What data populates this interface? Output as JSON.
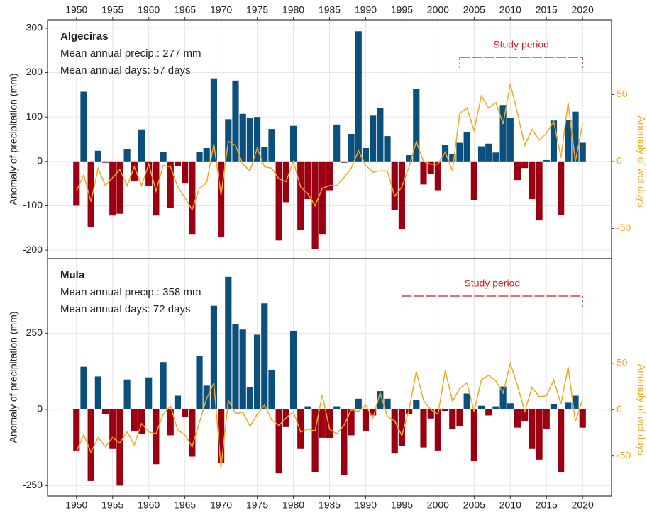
{
  "chart_data": [
    {
      "type": "bar_line",
      "title": "Algeciras",
      "subtitle": [
        "Mean annual precip.: 277 mm",
        "Mean annual days: 57 days"
      ],
      "ylabel": "Anomaly of precipitation (mm)",
      "y2label": "Anomaly of wet days",
      "annotation": {
        "text": "Study period",
        "x": [
          2003,
          2020
        ],
        "color": "#d7191c"
      },
      "x": [
        1950,
        1951,
        1952,
        1953,
        1954,
        1955,
        1956,
        1957,
        1958,
        1959,
        1960,
        1961,
        1962,
        1963,
        1964,
        1965,
        1966,
        1967,
        1968,
        1969,
        1970,
        1971,
        1972,
        1973,
        1974,
        1975,
        1976,
        1977,
        1978,
        1979,
        1980,
        1981,
        1982,
        1983,
        1984,
        1985,
        1986,
        1987,
        1988,
        1989,
        1990,
        1991,
        1992,
        1993,
        1994,
        1995,
        1996,
        1997,
        1998,
        1999,
        2000,
        2001,
        2002,
        2003,
        2004,
        2005,
        2006,
        2007,
        2008,
        2009,
        2010,
        2011,
        2012,
        2013,
        2014,
        2015,
        2016,
        2017,
        2018,
        2019,
        2020
      ],
      "series": [
        {
          "type": "bar",
          "color": "#0b4f7c",
          "negative_color": "#9b0012",
          "values": [
            -100,
            157,
            -148,
            24,
            -3,
            -122,
            -118,
            28,
            -45,
            72,
            -55,
            -122,
            22,
            -105,
            -10,
            -50,
            -165,
            22,
            30,
            187,
            -170,
            95,
            182,
            107,
            97,
            100,
            33,
            73,
            -178,
            -92,
            80,
            -155,
            -85,
            -197,
            -165,
            -65,
            83,
            -3,
            62,
            293,
            30,
            103,
            120,
            57,
            -110,
            -152,
            14,
            163,
            -52,
            -28,
            -65,
            37,
            17,
            42,
            66,
            -88,
            34,
            40,
            20,
            127,
            98,
            -42,
            -15,
            -85,
            -133,
            3,
            92,
            -120,
            93,
            112,
            42
          ]
        },
        {
          "type": "line",
          "axis": "y2",
          "color": "#f5a623",
          "values": [
            -22,
            -10,
            -30,
            -5,
            -18,
            -12,
            -6,
            -18,
            -4,
            -18,
            -2,
            -22,
            -3,
            -4,
            -19,
            -27,
            -36,
            -20,
            -16,
            13,
            -25,
            15,
            12,
            -2,
            -7,
            10,
            -4,
            -5,
            -13,
            -15,
            0,
            -19,
            -24,
            -33,
            -20,
            -18,
            -18,
            -12,
            -5,
            8,
            -3,
            -8,
            -7,
            -7,
            -26,
            -19,
            -4,
            15,
            0,
            -2,
            -2,
            7,
            -7,
            36,
            40,
            23,
            49,
            40,
            44,
            28,
            58,
            36,
            12,
            24,
            16,
            21,
            30,
            3,
            44,
            0,
            28
          ]
        }
      ],
      "xlim": [
        1946,
        2024
      ],
      "xticks": [
        1950,
        1955,
        1960,
        1965,
        1970,
        1975,
        1980,
        1985,
        1990,
        1995,
        2000,
        2005,
        2010,
        2015,
        2020
      ],
      "xaxis": "top",
      "ylim": [
        -219,
        319
      ],
      "yticks": [
        -200,
        -100,
        0,
        100,
        200,
        300
      ],
      "y2lim": [
        -72.5,
        105.8
      ],
      "y2ticks": [
        -50,
        0,
        50
      ],
      "grid": true
    },
    {
      "type": "bar_line",
      "title": "Mula",
      "subtitle": [
        "Mean annual precip.: 358 mm",
        "Mean annual days: 72 days"
      ],
      "ylabel": "Anomaly of precipitation (mm)",
      "y2label": "Anomaly of wet days",
      "annotation": {
        "text": "Study period",
        "x": [
          1995,
          2020
        ],
        "color": "#d7191c"
      },
      "x": [
        1950,
        1951,
        1952,
        1953,
        1954,
        1955,
        1956,
        1957,
        1958,
        1959,
        1960,
        1961,
        1962,
        1963,
        1964,
        1965,
        1966,
        1967,
        1968,
        1969,
        1970,
        1971,
        1972,
        1973,
        1974,
        1975,
        1976,
        1977,
        1978,
        1979,
        1980,
        1981,
        1982,
        1983,
        1984,
        1985,
        1986,
        1987,
        1988,
        1989,
        1990,
        1991,
        1992,
        1993,
        1994,
        1995,
        1996,
        1997,
        1998,
        1999,
        2000,
        2001,
        2002,
        2003,
        2004,
        2005,
        2006,
        2007,
        2008,
        2009,
        2010,
        2011,
        2012,
        2013,
        2014,
        2015,
        2016,
        2017,
        2018,
        2019,
        2020
      ],
      "series": [
        {
          "type": "bar",
          "color": "#0b4f7c",
          "negative_color": "#9b0012",
          "values": [
            -135,
            140,
            -235,
            108,
            -15,
            -130,
            -250,
            98,
            -70,
            -80,
            105,
            -180,
            155,
            -85,
            45,
            -25,
            -155,
            175,
            78,
            340,
            -175,
            435,
            280,
            262,
            72,
            245,
            348,
            130,
            -210,
            -58,
            258,
            -130,
            10,
            -205,
            -93,
            -95,
            10,
            -215,
            -85,
            35,
            -70,
            -20,
            60,
            35,
            -145,
            -120,
            -15,
            30,
            -125,
            -30,
            -135,
            -5,
            -65,
            -55,
            52,
            -170,
            12,
            -20,
            10,
            75,
            20,
            -60,
            -40,
            -130,
            -165,
            -65,
            18,
            -205,
            22,
            45,
            -60
          ]
        },
        {
          "type": "line",
          "axis": "y2",
          "color": "#f5a623",
          "values": [
            -45,
            -27,
            -46,
            -30,
            -40,
            -30,
            -36,
            -24,
            -38,
            -15,
            -24,
            -26,
            -5,
            4,
            -22,
            -27,
            -40,
            -14,
            12,
            29,
            -63,
            10,
            -4,
            -3,
            -18,
            -5,
            5,
            -11,
            -17,
            -9,
            -2,
            -24,
            -21,
            -23,
            16,
            -21,
            -26,
            -17,
            0,
            -2,
            5,
            -9,
            18,
            -7,
            -12,
            -28,
            0,
            41,
            10,
            0,
            -5,
            42,
            9,
            23,
            29,
            -2,
            32,
            37,
            31,
            18,
            50,
            26,
            -2,
            24,
            14,
            15,
            32,
            6,
            46,
            -13,
            11
          ]
        }
      ],
      "xlim": [
        1946,
        2024
      ],
      "xticks": [
        1950,
        1955,
        1960,
        1965,
        1970,
        1975,
        1980,
        1985,
        1990,
        1995,
        2000,
        2005,
        2010,
        2015,
        2020
      ],
      "xaxis": "bottom",
      "ylim": [
        -284,
        495
      ],
      "yticks": [
        -250,
        0,
        250
      ],
      "y2lim": [
        -93,
        163
      ],
      "y2ticks": [
        -50,
        0,
        50
      ],
      "grid": true
    }
  ]
}
